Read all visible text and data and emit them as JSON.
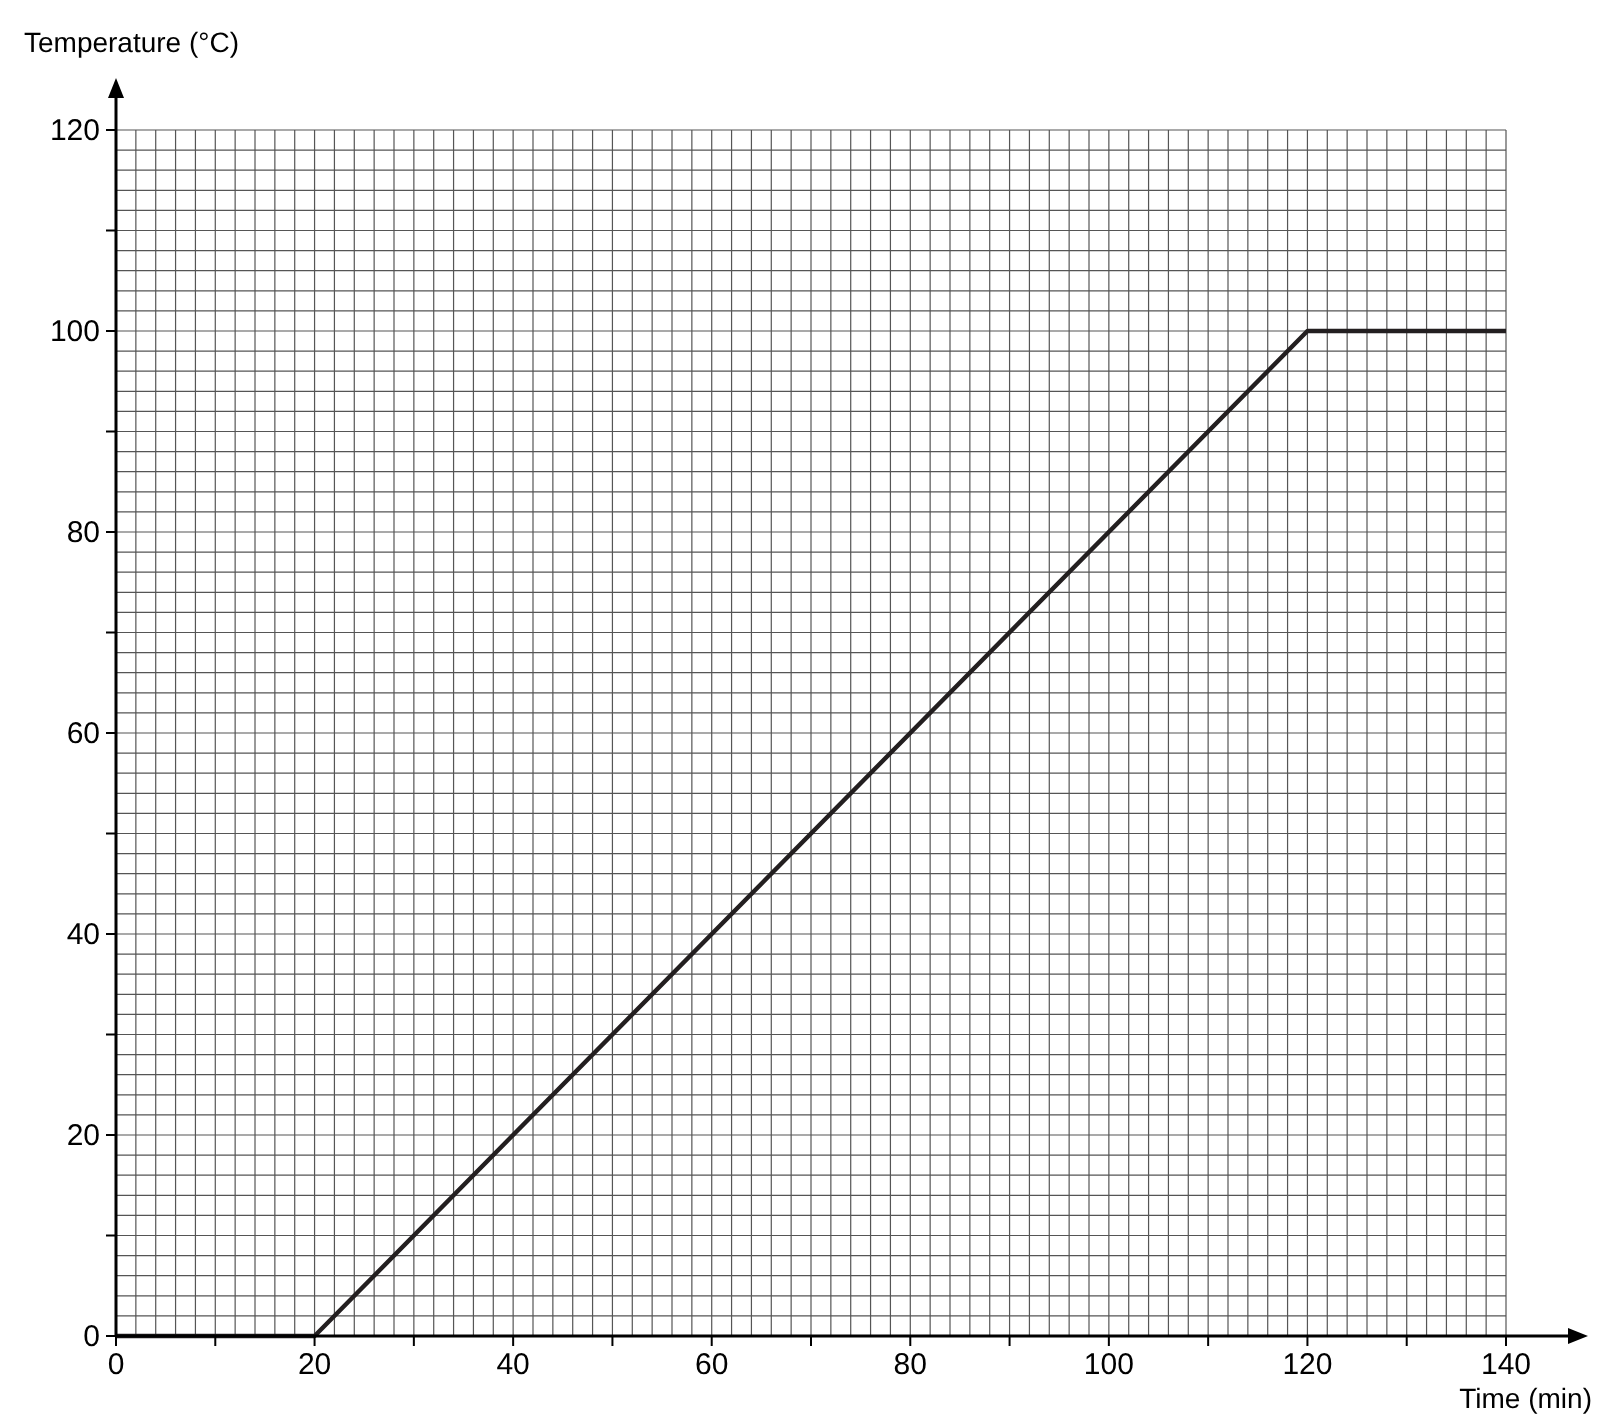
{
  "chart_data": {
    "type": "line",
    "xlabel": "Time (min)",
    "ylabel": "Temperature (°C)",
    "x": [
      0,
      20,
      120,
      140
    ],
    "series": [
      {
        "color": "#231f20",
        "values": [
          0,
          0,
          100,
          100
        ]
      }
    ],
    "xlim": [
      0,
      140
    ],
    "ylim": [
      0,
      120
    ],
    "xticks": [
      0,
      {
        "value": 10,
        "label": null
      },
      20,
      {
        "value": 30,
        "label": null
      },
      40,
      {
        "value": 50,
        "label": null
      },
      60,
      {
        "value": 70,
        "label": null
      },
      80,
      {
        "value": 90,
        "label": null
      },
      100,
      {
        "value": 110,
        "label": null
      },
      120,
      {
        "value": 130,
        "label": null
      },
      140
    ],
    "yticks": [
      0,
      {
        "value": 10,
        "label": null
      },
      20,
      {
        "value": 30,
        "label": null
      },
      40,
      {
        "value": 50,
        "label": null
      },
      60,
      {
        "value": 70,
        "label": null
      },
      80,
      {
        "value": 90,
        "label": null
      },
      100,
      {
        "value": 110,
        "label": null
      },
      120
    ],
    "grid": true,
    "marker": "none",
    "line_style": "solid"
  }
}
